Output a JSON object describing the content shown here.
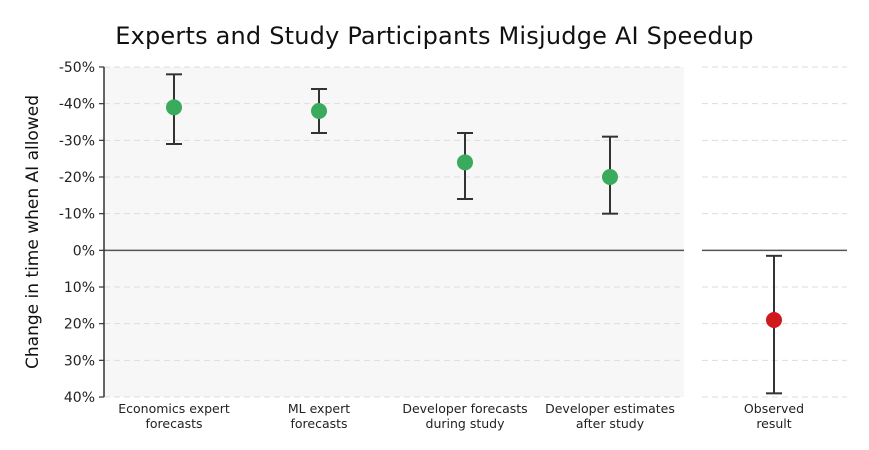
{
  "chart_data": {
    "type": "scatter",
    "title": "Experts and Study Participants Misjudge AI Speedup",
    "xlabel": "",
    "ylabel": "Change in time when AI allowed",
    "ylim": [
      -50,
      40
    ],
    "y_inverted": true,
    "yticks": [
      -50,
      -40,
      -30,
      -20,
      -10,
      0,
      10,
      20,
      30,
      40
    ],
    "ytick_labels": [
      "-50%",
      "-40%",
      "-30%",
      "-20%",
      "-10%",
      "0%",
      "10%",
      "20%",
      "30%",
      "40%"
    ],
    "grid": true,
    "categories": [
      {
        "lines": [
          "Economics expert",
          "forecasts"
        ],
        "value": -39,
        "ci_low": -48,
        "ci_high": -29,
        "color": "#3aaa5c",
        "panel": "forecasts"
      },
      {
        "lines": [
          "ML expert",
          "forecasts"
        ],
        "value": -38,
        "ci_low": -44,
        "ci_high": -32,
        "color": "#3aaa5c",
        "panel": "forecasts"
      },
      {
        "lines": [
          "Developer forecasts",
          "during study"
        ],
        "value": -24,
        "ci_low": -32,
        "ci_high": -14,
        "color": "#3aaa5c",
        "panel": "forecasts"
      },
      {
        "lines": [
          "Developer estimates",
          "after study"
        ],
        "value": -20,
        "ci_low": -31,
        "ci_high": -10,
        "color": "#3aaa5c",
        "panel": "forecasts"
      },
      {
        "lines": [
          "Observed",
          "result"
        ],
        "value": 19,
        "ci_low": 1.5,
        "ci_high": 39,
        "color": "#d0191c",
        "panel": "observed"
      }
    ]
  }
}
